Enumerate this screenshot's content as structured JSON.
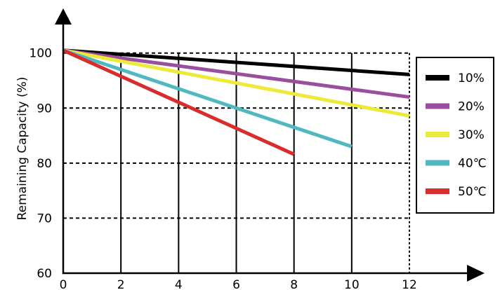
{
  "chart_data": {
    "type": "line",
    "title": "",
    "xlabel": "",
    "ylabel": "Remaining Capacity (%)",
    "xlim": [
      0,
      12
    ],
    "ylim": [
      60,
      102
    ],
    "xticks": [
      "0",
      "2",
      "4",
      "6",
      "8",
      "10",
      "12"
    ],
    "yticks": [
      "60",
      "70",
      "80",
      "90",
      "100"
    ],
    "grid": true,
    "legend_position": "right",
    "series": [
      {
        "name": "10%",
        "color": "#000000",
        "x": [
          0,
          12
        ],
        "y": [
          100.5,
          96.1
        ]
      },
      {
        "name": "20%",
        "color": "#9b4d9e",
        "x": [
          0,
          12
        ],
        "y": [
          100.5,
          92.0
        ]
      },
      {
        "name": "30%",
        "color": "#eeea3a",
        "x": [
          0,
          12
        ],
        "y": [
          100.5,
          88.6
        ]
      },
      {
        "name": "40℃",
        "color": "#4fb8c0",
        "x": [
          0,
          10
        ],
        "y": [
          100.5,
          83.0
        ]
      },
      {
        "name": "50℃",
        "color": "#d92c2c",
        "x": [
          0,
          8
        ],
        "y": [
          100.5,
          81.6
        ]
      }
    ]
  }
}
